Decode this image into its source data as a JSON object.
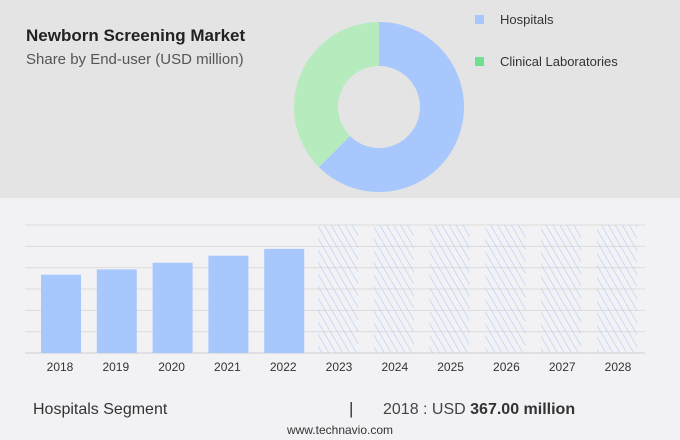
{
  "header": {
    "title": "Newborn Screening Market",
    "subtitle": "Share by End-user (USD million)"
  },
  "colors": {
    "hospitals": "#a8c8fd",
    "clinical": "#b6ecbd",
    "clinical_legend": "#6ee090",
    "grid": "#dcdcdc"
  },
  "chart_data": [
    {
      "type": "pie",
      "donut": true,
      "legend_placement": "right",
      "labels": [
        "Hospitals",
        "Clinical Laboratories"
      ],
      "values": [
        62.5,
        37.5
      ]
    },
    {
      "type": "bar",
      "categories": [
        "2018",
        "2019",
        "2020",
        "2021",
        "2022",
        "2023",
        "2024",
        "2025",
        "2026",
        "2027",
        "2028"
      ],
      "series": [
        {
          "name": "Hospitals",
          "values": [
            367,
            392,
            423,
            456,
            488,
            null,
            null,
            null,
            null,
            null,
            null
          ]
        }
      ],
      "forecast_categories": [
        "2023",
        "2024",
        "2025",
        "2026",
        "2027",
        "2028"
      ],
      "ylim": [
        0,
        600
      ],
      "grid": true,
      "y_tick_labels_shown": false
    }
  ],
  "footer": {
    "segment": "Hospitals Segment",
    "separator": "|",
    "year_prefix": "2018 : USD ",
    "value": "367.00 million",
    "url": "www.technavio.com"
  }
}
